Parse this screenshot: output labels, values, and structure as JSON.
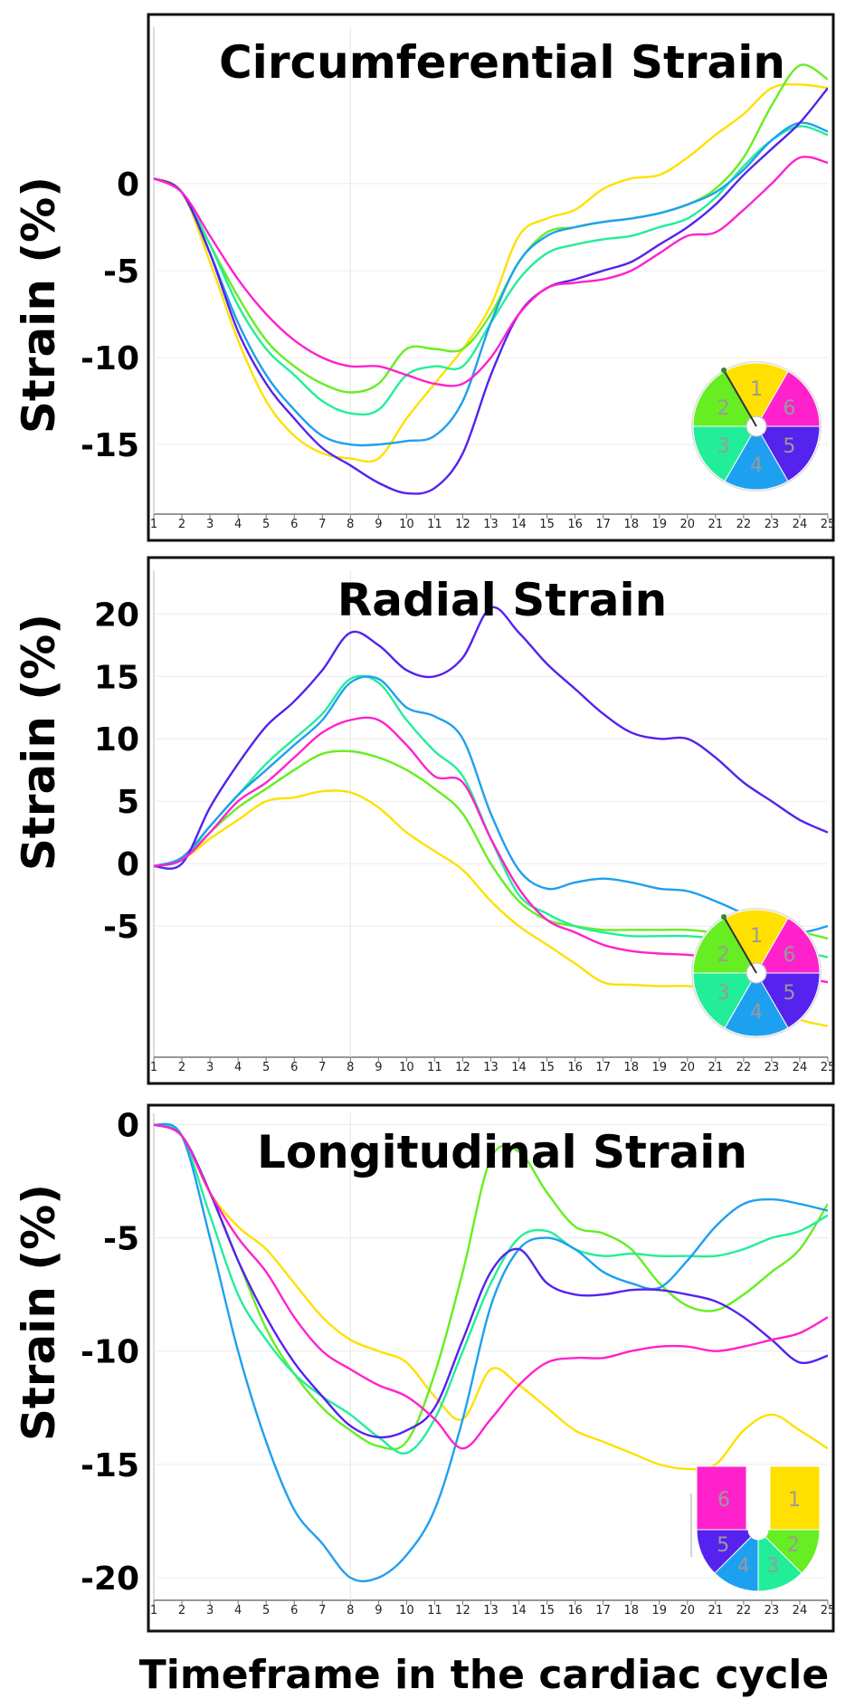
{
  "chart_data": [
    {
      "type": "line",
      "title": "Circumferential Strain",
      "xlabel": "",
      "ylabel": "Strain (%)",
      "ylim": [
        -19,
        9
      ],
      "yticks": [
        0,
        -5,
        -10,
        -15
      ],
      "ytick_labels": [
        "0",
        "-5",
        "-10",
        "-15"
      ],
      "x_ticks": [
        "1",
        "2",
        "3",
        "4",
        "5",
        "6",
        "7",
        "8",
        "9",
        "10",
        "11",
        "12",
        "13",
        "14",
        "15",
        "16",
        "17",
        "18",
        "19",
        "20",
        "21",
        "22",
        "23",
        "24",
        "25"
      ],
      "x": [
        1,
        2,
        3,
        4,
        5,
        6,
        7,
        8,
        9,
        10,
        11,
        12,
        13,
        14,
        15,
        16,
        17,
        18,
        19,
        20,
        21,
        22,
        23,
        24,
        25
      ],
      "legend_type": "bullseye",
      "legend_segments": [
        "1",
        "2",
        "3",
        "4",
        "5",
        "6"
      ],
      "series": [
        {
          "name": "1",
          "color": "#ffe000",
          "values": [
            0.3,
            -0.5,
            -4.5,
            -9,
            -12.5,
            -14.5,
            -15.5,
            -15.8,
            -15.8,
            -13.5,
            -11.5,
            -9.5,
            -7,
            -3,
            -2,
            -1.5,
            -0.3,
            0.3,
            0.5,
            1.5,
            2.8,
            4,
            5.5,
            5.7,
            5.5
          ]
        },
        {
          "name": "2",
          "color": "#66ee22",
          "values": [
            0.3,
            -0.5,
            -3.5,
            -6.5,
            -9,
            -10.5,
            -11.5,
            -12,
            -11.5,
            -9.5,
            -9.5,
            -9.5,
            -7.5,
            -4.5,
            -2.8,
            -2.5,
            -2.2,
            -2,
            -1.7,
            -1.2,
            -0.3,
            1.5,
            4.5,
            6.8,
            6
          ]
        },
        {
          "name": "3",
          "color": "#22ee99",
          "values": [
            0.3,
            -0.5,
            -3.5,
            -7,
            -9.5,
            -11,
            -12.5,
            -13.2,
            -13,
            -11,
            -10.5,
            -10.5,
            -8,
            -5.5,
            -4,
            -3.5,
            -3.2,
            -3,
            -2.5,
            -2,
            -0.8,
            1,
            2.5,
            3.3,
            2.8
          ]
        },
        {
          "name": "4",
          "color": "#1ea0f0",
          "values": [
            0.3,
            -0.5,
            -4,
            -8,
            -11,
            -13,
            -14.5,
            -15,
            -15,
            -14.8,
            -14.5,
            -12.5,
            -8,
            -4.5,
            -3,
            -2.5,
            -2.2,
            -2,
            -1.7,
            -1.2,
            -0.5,
            0.8,
            2.5,
            3.5,
            3
          ]
        },
        {
          "name": "5",
          "color": "#5522ee",
          "values": [
            0.3,
            -0.5,
            -4,
            -8.5,
            -11.5,
            -13.5,
            -15.2,
            -16.2,
            -17.2,
            -17.8,
            -17.5,
            -15.5,
            -11,
            -7.5,
            -6,
            -5.5,
            -5,
            -4.5,
            -3.5,
            -2.5,
            -1.2,
            0.5,
            2,
            3.5,
            5.5
          ]
        },
        {
          "name": "6",
          "color": "#ff22cc",
          "values": [
            0.3,
            -0.5,
            -3,
            -5.5,
            -7.5,
            -9,
            -10,
            -10.5,
            -10.5,
            -11,
            -11.5,
            -11.5,
            -10,
            -7.5,
            -6,
            -5.7,
            -5.5,
            -5,
            -4,
            -3,
            -2.8,
            -1.5,
            0,
            1.5,
            1.2
          ]
        }
      ]
    },
    {
      "type": "line",
      "title": "Radial Strain",
      "xlabel": "",
      "ylabel": "Strain (%)",
      "ylim": [
        -15.5,
        23.5
      ],
      "yticks": [
        20,
        15,
        10,
        5,
        0,
        -5
      ],
      "ytick_labels": [
        "20",
        "15",
        "10",
        "5",
        "0",
        "-5"
      ],
      "x_ticks": [
        "1",
        "2",
        "3",
        "4",
        "5",
        "6",
        "7",
        "8",
        "9",
        "10",
        "11",
        "12",
        "13",
        "14",
        "15",
        "16",
        "17",
        "18",
        "19",
        "20",
        "21",
        "22",
        "23",
        "24",
        "25"
      ],
      "x": [
        1,
        2,
        3,
        4,
        5,
        6,
        7,
        8,
        9,
        10,
        11,
        12,
        13,
        14,
        15,
        16,
        17,
        18,
        19,
        20,
        21,
        22,
        23,
        24,
        25
      ],
      "legend_type": "bullseye",
      "legend_segments": [
        "1",
        "2",
        "3",
        "4",
        "5",
        "6"
      ],
      "series": [
        {
          "name": "1",
          "color": "#ffe000",
          "values": [
            -0.2,
            0.3,
            2,
            3.5,
            5,
            5.3,
            5.8,
            5.7,
            4.5,
            2.5,
            1,
            -0.5,
            -3,
            -5,
            -6.5,
            -8,
            -9.5,
            -9.7,
            -9.8,
            -9.8,
            -10,
            -10.5,
            -11.5,
            -12.5,
            -13
          ]
        },
        {
          "name": "2",
          "color": "#66ee22",
          "values": [
            -0.2,
            0.3,
            2.5,
            4.5,
            6,
            7.5,
            8.8,
            9,
            8.5,
            7.5,
            6,
            4,
            0,
            -3,
            -4.5,
            -5,
            -5.3,
            -5.3,
            -5.3,
            -5.3,
            -5.5,
            -5.5,
            -5.5,
            -5.5,
            -6
          ]
        },
        {
          "name": "3",
          "color": "#22ee99",
          "values": [
            -0.2,
            0.3,
            3,
            5.5,
            8,
            10,
            12,
            14.8,
            14.5,
            11.5,
            9,
            7,
            2,
            -2.5,
            -4,
            -5,
            -5.5,
            -5.8,
            -5.8,
            -5.8,
            -6,
            -6.2,
            -6.5,
            -7,
            -7.5
          ]
        },
        {
          "name": "4",
          "color": "#1ea0f0",
          "values": [
            -0.2,
            0.5,
            3,
            5.5,
            7.5,
            9.5,
            11.5,
            14.5,
            14.8,
            12.5,
            11.8,
            10,
            4,
            -0.5,
            -2,
            -1.5,
            -1.2,
            -1.5,
            -2,
            -2.2,
            -3,
            -4,
            -5,
            -5.5,
            -5
          ]
        },
        {
          "name": "5",
          "color": "#5522ee",
          "values": [
            -0.2,
            0,
            4.5,
            8,
            11,
            13,
            15.5,
            18.5,
            17.5,
            15.5,
            15,
            16.5,
            20.5,
            18.5,
            16,
            14,
            12,
            10.5,
            10,
            10,
            8.5,
            6.5,
            5,
            3.5,
            2.5
          ]
        },
        {
          "name": "6",
          "color": "#ff22cc",
          "values": [
            -0.2,
            0.3,
            2.5,
            5,
            6.5,
            8.5,
            10.5,
            11.5,
            11.5,
            9.5,
            7,
            6.5,
            2,
            -2,
            -4.5,
            -5.5,
            -6.5,
            -7,
            -7.2,
            -7.3,
            -7.5,
            -7.5,
            -8,
            -9,
            -9.5
          ]
        }
      ]
    },
    {
      "type": "line",
      "title": "Longitudinal Strain",
      "xlabel": "Timeframe in the cardiac cycle",
      "ylabel": "Strain (%)",
      "ylim": [
        -21,
        0.5
      ],
      "yticks": [
        0,
        -5,
        -10,
        -15,
        -20
      ],
      "ytick_labels": [
        "0",
        "-5",
        "-10",
        "-15",
        "-20"
      ],
      "x_ticks": [
        "1",
        "2",
        "3",
        "4",
        "5",
        "6",
        "7",
        "8",
        "9",
        "10",
        "11",
        "12",
        "13",
        "14",
        "15",
        "16",
        "17",
        "18",
        "19",
        "20",
        "21",
        "22",
        "23",
        "24",
        "25"
      ],
      "x": [
        1,
        2,
        3,
        4,
        5,
        6,
        7,
        8,
        9,
        10,
        11,
        12,
        13,
        14,
        15,
        16,
        17,
        18,
        19,
        20,
        21,
        22,
        23,
        24,
        25
      ],
      "legend_type": "horseshoe",
      "legend_segments": [
        "6",
        "1",
        "5",
        "4",
        "3",
        "2"
      ],
      "series": [
        {
          "name": "1",
          "color": "#ffe000",
          "values": [
            0,
            -0.5,
            -3,
            -4.5,
            -5.5,
            -7,
            -8.5,
            -9.5,
            -10,
            -10.5,
            -12,
            -13,
            -10.8,
            -11.5,
            -12.5,
            -13.5,
            -14,
            -14.5,
            -15,
            -15.2,
            -15,
            -13.5,
            -12.8,
            -13.5,
            -14.3
          ]
        },
        {
          "name": "2",
          "color": "#66ee22",
          "values": [
            0,
            -0.5,
            -3,
            -6,
            -9,
            -11,
            -12.5,
            -13.5,
            -14.2,
            -14,
            -11,
            -6.5,
            -1.5,
            -1.2,
            -3,
            -4.5,
            -4.8,
            -5.5,
            -7,
            -8,
            -8.2,
            -7.5,
            -6.5,
            -5.5,
            -3.5
          ]
        },
        {
          "name": "3",
          "color": "#22ee99",
          "values": [
            0,
            -0.5,
            -4,
            -7.5,
            -9.5,
            -11,
            -12,
            -12.8,
            -13.8,
            -14.5,
            -13,
            -10,
            -7,
            -5,
            -4.7,
            -5.5,
            -5.8,
            -5.7,
            -5.8,
            -5.8,
            -5.8,
            -5.5,
            -5,
            -4.7,
            -4
          ]
        },
        {
          "name": "4",
          "color": "#1ea0f0",
          "values": [
            0,
            -0.5,
            -5,
            -10,
            -14,
            -17,
            -18.5,
            -20,
            -20,
            -19,
            -17,
            -13,
            -8,
            -5.5,
            -5,
            -5.5,
            -6.5,
            -7,
            -7.2,
            -6,
            -4.5,
            -3.5,
            -3.3,
            -3.5,
            -3.8
          ]
        },
        {
          "name": "5",
          "color": "#5522ee",
          "values": [
            0,
            -0.5,
            -3,
            -6,
            -8.5,
            -10.5,
            -12,
            -13.3,
            -13.8,
            -13.5,
            -12.5,
            -9.5,
            -6.5,
            -5.5,
            -7,
            -7.5,
            -7.5,
            -7.3,
            -7.3,
            -7.5,
            -7.8,
            -8.5,
            -9.5,
            -10.5,
            -10.2
          ]
        },
        {
          "name": "6",
          "color": "#ff22cc",
          "values": [
            0,
            -0.5,
            -3,
            -5,
            -6.5,
            -8.5,
            -10,
            -10.8,
            -11.5,
            -12,
            -13,
            -14.3,
            -13,
            -11.5,
            -10.5,
            -10.3,
            -10.3,
            -10,
            -9.8,
            -9.8,
            -10,
            -9.8,
            -9.5,
            -9.2,
            -8.5
          ]
        }
      ]
    }
  ]
}
